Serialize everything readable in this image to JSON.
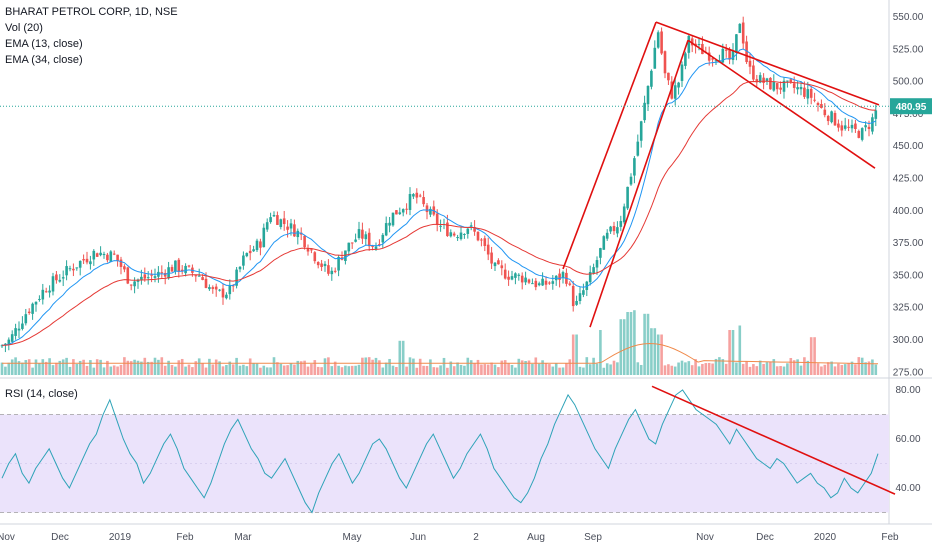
{
  "header": {
    "title": "BHARAT PETROL CORP, 1D, NSE",
    "indicators": [
      "Vol (20)",
      "EMA (13, close)",
      "EMA (34, close)"
    ]
  },
  "rsi_panel": {
    "label": "RSI (14, close)"
  },
  "last_price": "480.95",
  "colors": {
    "up": "#26a69a",
    "down": "#ef5350",
    "ema13": "#2196f3",
    "ema34": "#e53935",
    "trendline": "#e01010",
    "rsi_line": "#2ea3b8",
    "rsi_band": "#ebe3fb",
    "last_price_bg": "#26a69a",
    "vol_ma": "#f08a4b"
  },
  "chart_data": [
    {
      "type": "candlestick",
      "title": "BHARAT PETROL CORP, 1D, NSE",
      "ylim": [
        260,
        560
      ],
      "y_ticks": [
        275,
        300,
        325,
        350,
        375,
        400,
        425,
        450,
        475,
        500,
        525,
        550
      ],
      "x_ticks": [
        "Nov",
        "Dec",
        "2019",
        "Feb",
        "Mar",
        "May",
        "Jun",
        "2",
        "Aug",
        "Sep",
        "Nov",
        "Dec",
        "2020",
        "Feb"
      ],
      "series_path": [
        [
          0,
          295
        ],
        [
          10,
          300
        ],
        [
          25,
          320
        ],
        [
          45,
          340
        ],
        [
          70,
          355
        ],
        [
          95,
          368
        ],
        [
          115,
          365
        ],
        [
          130,
          345
        ],
        [
          155,
          350
        ],
        [
          175,
          357
        ],
        [
          200,
          350
        ],
        [
          215,
          335
        ],
        [
          230,
          338
        ],
        [
          245,
          365
        ],
        [
          260,
          375
        ],
        [
          270,
          398
        ],
        [
          285,
          390
        ],
        [
          300,
          382
        ],
        [
          315,
          365
        ],
        [
          330,
          350
        ],
        [
          345,
          370
        ],
        [
          360,
          382
        ],
        [
          375,
          372
        ],
        [
          390,
          395
        ],
        [
          405,
          405
        ],
        [
          415,
          412
        ],
        [
          425,
          402
        ],
        [
          440,
          388
        ],
        [
          455,
          382
        ],
        [
          468,
          388
        ],
        [
          480,
          378
        ],
        [
          495,
          355
        ],
        [
          510,
          350
        ],
        [
          525,
          348
        ],
        [
          540,
          342
        ],
        [
          555,
          346
        ],
        [
          565,
          352
        ],
        [
          575,
          325
        ],
        [
          590,
          348
        ],
        [
          605,
          378
        ],
        [
          620,
          392
        ],
        [
          632,
          432
        ],
        [
          640,
          462
        ],
        [
          650,
          505
        ],
        [
          658,
          540
        ],
        [
          665,
          505
        ],
        [
          672,
          490
        ],
        [
          680,
          502
        ],
        [
          688,
          532
        ],
        [
          700,
          525
        ],
        [
          712,
          520
        ],
        [
          722,
          522
        ],
        [
          732,
          515
        ],
        [
          740,
          548
        ],
        [
          748,
          510
        ],
        [
          758,
          502
        ],
        [
          768,
          498
        ],
        [
          778,
          496
        ],
        [
          788,
          496
        ],
        [
          800,
          494
        ],
        [
          812,
          488
        ],
        [
          822,
          478
        ],
        [
          832,
          472
        ],
        [
          842,
          465
        ],
        [
          852,
          462
        ],
        [
          862,
          460
        ],
        [
          872,
          470
        ],
        [
          878,
          481
        ]
      ],
      "ema13_approx": "smoothed close",
      "ema34_approx": "smoothed close",
      "last_price": 480.95,
      "trendlines": [
        {
          "from": [
            563,
            355
          ],
          "to": [
            656,
            546
          ]
        },
        {
          "from": [
            590,
            310
          ],
          "to": [
            688,
            532
          ]
        },
        {
          "from": [
            656,
            546
          ],
          "to": [
            879,
            482
          ]
        },
        {
          "from": [
            688,
            532
          ],
          "to": [
            875,
            433
          ]
        }
      ]
    },
    {
      "type": "bar",
      "title": "Vol (20)",
      "description_values": "volume per session, relative scale 0-1",
      "spikes": [
        [
          402,
          0.38
        ],
        [
          575,
          0.45
        ],
        [
          600,
          0.5
        ],
        [
          622,
          0.62
        ],
        [
          628,
          0.7
        ],
        [
          634,
          0.72
        ],
        [
          646,
          0.68
        ],
        [
          652,
          0.52
        ],
        [
          660,
          0.45
        ],
        [
          732,
          0.5
        ],
        [
          740,
          0.55
        ],
        [
          812,
          0.42
        ]
      ]
    },
    {
      "type": "line",
      "title": "RSI (14, close)",
      "ylim": [
        28,
        84
      ],
      "y_ticks": [
        40,
        60,
        80
      ],
      "band": [
        30,
        70
      ],
      "series": [
        {
          "values": [
            44,
            50,
            54,
            46,
            42,
            48,
            52,
            56,
            50,
            44,
            40,
            46,
            52,
            58,
            62,
            70,
            76,
            68,
            60,
            54,
            50,
            42,
            46,
            52,
            58,
            62,
            56,
            48,
            44,
            40,
            36,
            42,
            50,
            58,
            64,
            68,
            62,
            56,
            52,
            46,
            44,
            48,
            52,
            46,
            40,
            34,
            30,
            38,
            44,
            50,
            54,
            48,
            42,
            46,
            52,
            58,
            60,
            56,
            50,
            44,
            40,
            46,
            52,
            58,
            62,
            56,
            50,
            44,
            48,
            54,
            58,
            62,
            56,
            48,
            44,
            40,
            36,
            34,
            38,
            44,
            52,
            58,
            66,
            72,
            78,
            74,
            68,
            62,
            56,
            52,
            48,
            56,
            62,
            68,
            72,
            66,
            60,
            58,
            66,
            72,
            78,
            80,
            76,
            72,
            70,
            68,
            66,
            62,
            58,
            64,
            60,
            56,
            52,
            50,
            48,
            52,
            50,
            46,
            42,
            44,
            46,
            42,
            40,
            36,
            38,
            44,
            40,
            38,
            42,
            46,
            54
          ]
        }
      ],
      "trendline": {
        "from": [
          81.5
        ],
        "to": [
          37.5
        ]
      }
    }
  ]
}
